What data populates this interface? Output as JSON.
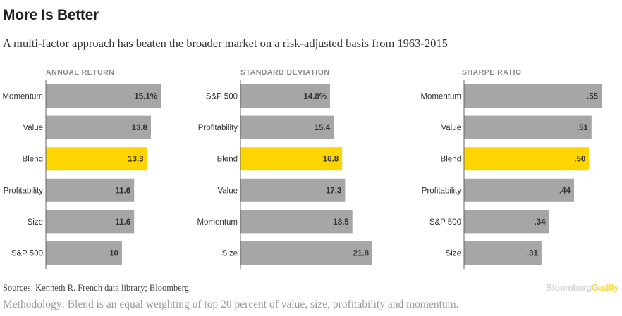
{
  "header": {
    "title": "More Is Better",
    "subtitle": "A multi-factor approach has beaten the broader market on a risk-adjusted basis from 1963-2015"
  },
  "footer": {
    "source": "Sources: Kenneth R. French data library; Bloomberg",
    "methodology": "Methodology: Blend is an equal weighting of top 20 percent of value, size, profitability and momentum.",
    "logo_part1": "Bloomberg",
    "logo_part2": "Gadfly"
  },
  "colors": {
    "bar": "#a6a6a6",
    "highlight": "#ffd500",
    "axis": "#666666",
    "panel_title": "#8a8a8a",
    "value_text": "#333333"
  },
  "chart_data": [
    {
      "type": "bar",
      "orientation": "horizontal",
      "title": "ANNUAL RETURN",
      "categories": [
        "Momentum",
        "Value",
        "Blend",
        "Profitability",
        "Size",
        "S&P 500"
      ],
      "values": [
        15.1,
        13.8,
        13.3,
        11.6,
        11.6,
        10
      ],
      "labels": [
        "15.1%",
        "13.8",
        "13.3",
        "11.6",
        "11.6",
        "10"
      ],
      "highlight": "Blend",
      "xlim": [
        0,
        15.1
      ]
    },
    {
      "type": "bar",
      "orientation": "horizontal",
      "title": "STANDARD DEVIATION",
      "categories": [
        "S&P 500",
        "Profitability",
        "Blend",
        "Value",
        "Momentum",
        "Size"
      ],
      "values": [
        14.8,
        15.4,
        16.8,
        17.3,
        18.5,
        21.8
      ],
      "labels": [
        "14.8%",
        "15.4",
        "16.8",
        "17.3",
        "18.5",
        "21.8"
      ],
      "highlight": "Blend",
      "xlim": [
        0,
        21.8
      ]
    },
    {
      "type": "bar",
      "orientation": "horizontal",
      "title": "SHARPE RATIO",
      "categories": [
        "Momentum",
        "Value",
        "Blend",
        "Profitability",
        "S&P 500",
        "Size"
      ],
      "values": [
        0.55,
        0.51,
        0.5,
        0.44,
        0.34,
        0.31
      ],
      "labels": [
        ".55",
        ".51",
        ".50",
        ".44",
        ".34",
        ".31"
      ],
      "highlight": "Blend",
      "xlim": [
        0,
        0.55
      ]
    }
  ]
}
